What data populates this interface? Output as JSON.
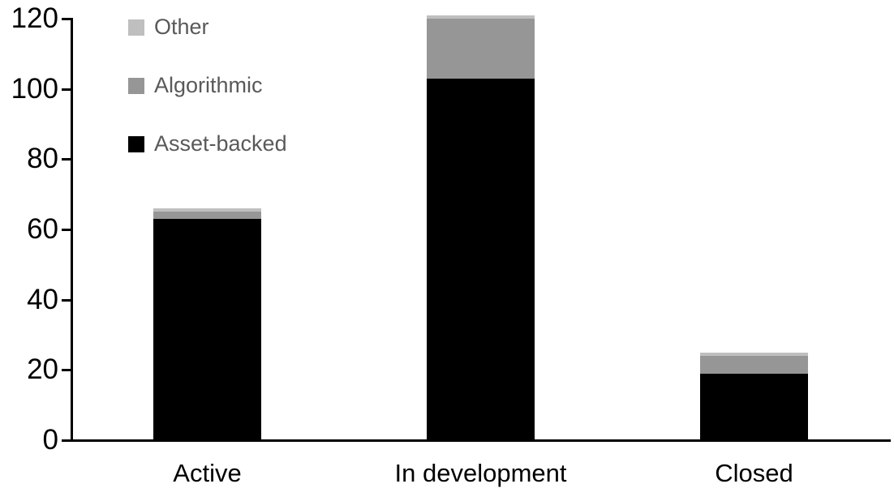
{
  "chart_data": {
    "type": "bar",
    "stacked": true,
    "title": "",
    "xlabel": "",
    "ylabel": "",
    "grid": false,
    "background": "#ffffff",
    "axis_color": "#000000",
    "tick_label_color": "#000000",
    "category_label_color": "#000000",
    "ylim": [
      0,
      120
    ],
    "yticks": [
      0,
      20,
      40,
      60,
      80,
      100,
      120
    ],
    "categories": [
      "Active",
      "In development",
      "Closed"
    ],
    "series": [
      {
        "name": "Asset-backed",
        "color": "#000000",
        "values": [
          63,
          103,
          19
        ]
      },
      {
        "name": "Algorithmic",
        "color": "#969696",
        "values": [
          2,
          17,
          5
        ]
      },
      {
        "name": "Other",
        "color": "#bfbfbf",
        "values": [
          1,
          1,
          1
        ]
      }
    ],
    "totals": [
      66,
      121,
      25
    ],
    "legend": {
      "position": "top-left",
      "text_color": "#595959",
      "order": [
        "Other",
        "Algorithmic",
        "Asset-backed"
      ]
    }
  }
}
